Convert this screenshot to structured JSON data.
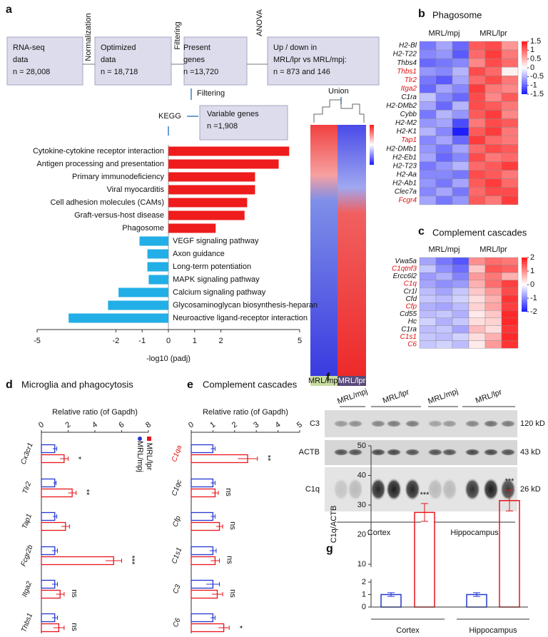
{
  "panel_a": {
    "letter": "a",
    "flow": {
      "boxes": [
        [
          "RNA-seq",
          "data",
          "n = 28,008"
        ],
        [
          "Optimized",
          "data",
          "n = 18,718"
        ],
        [
          "Present",
          "genes",
          "n =13,720"
        ],
        [
          "Up / down in",
          "MRL/lpr vs MRL/mpj:",
          "n = 873 and 146"
        ],
        [
          "Variable genes",
          "n =1,908"
        ]
      ],
      "steps": [
        "Normalization",
        "Filtering",
        "ANOVA",
        "Filtering",
        "Union",
        "KEGG"
      ]
    },
    "inset_groups": [
      "MRL/mpj",
      "MRL/lpr"
    ],
    "chart": {
      "type": "hbar",
      "categories": [
        "Cytokine-cytokine receptor interaction",
        "Antigen processing and presentation",
        "Primary immunodeficiency",
        "Viral myocarditis",
        "Cell adhesion molecules (CAMs)",
        "Graft-versus-host disease",
        "Phagosome",
        "VEGF signaling pathway",
        "Axon guidance",
        "Long-term potentiation",
        "MAPK signaling pathway",
        "Calcium signaling pathway",
        "Glycosaminoglycan biosynthesis-heparan",
        "Neuroactive ligand-receptor interaction"
      ],
      "values": [
        4.6,
        4.2,
        3.3,
        3.3,
        3.0,
        2.9,
        1.8,
        -1.1,
        -0.8,
        -0.8,
        -0.75,
        -1.9,
        -2.3,
        -3.8
      ],
      "positive_color": "#ee1c1c",
      "negative_color": "#22aee6",
      "xlim": [
        -5,
        5
      ],
      "xticks": [
        -5,
        -2,
        -1,
        0,
        1,
        2,
        5
      ],
      "xlabel": "-log10 (padj)"
    }
  },
  "panel_b": {
    "letter": "b",
    "title": "Phagosome",
    "groups": [
      "MRL/mpj",
      "MRL/lpr"
    ],
    "rows": [
      "H2-Bl",
      "H2-T22",
      "Thbs4",
      "Thbs1",
      "Tlr2",
      "Itga2",
      "C1ra",
      "H2-DMb2",
      "Cybb",
      "H2-M2",
      "H2-K1",
      "Tap1",
      "H2-DMb1",
      "H2-Eb1",
      "H2-T23",
      "H2-Aa",
      "H2-Ab1",
      "Clec7a",
      "Fcgr4"
    ],
    "row_colors": [
      "#111",
      "#111",
      "#111",
      "#e01010",
      "#e01010",
      "#e01010",
      "#111",
      "#111",
      "#111",
      "#111",
      "#111",
      "#e01010",
      "#111",
      "#111",
      "#111",
      "#111",
      "#111",
      "#111",
      "#e01010"
    ],
    "values": [
      [
        -0.9,
        -0.6,
        -1.0,
        1.1,
        1.2,
        0.7
      ],
      [
        -0.8,
        -0.7,
        -1.1,
        1.0,
        1.3,
        0.9
      ],
      [
        -1.0,
        -0.9,
        -0.8,
        0.8,
        1.2,
        1.0
      ],
      [
        -0.7,
        -0.8,
        -0.5,
        1.2,
        1.0,
        0.1
      ],
      [
        -0.9,
        -1.1,
        -0.6,
        1.0,
        1.2,
        0.9
      ],
      [
        -1.0,
        -0.6,
        -0.8,
        1.3,
        0.9,
        0.8
      ],
      [
        -0.4,
        -0.8,
        -1.0,
        1.2,
        0.8,
        1.1
      ],
      [
        -0.6,
        -1.0,
        -0.5,
        1.2,
        1.1,
        0.9
      ],
      [
        -0.9,
        -0.5,
        -0.7,
        1.1,
        1.3,
        0.8
      ],
      [
        -0.7,
        -0.6,
        -1.2,
        0.9,
        1.2,
        1.1
      ],
      [
        -0.5,
        -0.8,
        -1.5,
        1.1,
        1.3,
        0.9
      ],
      [
        -0.8,
        -0.6,
        -1.0,
        1.3,
        1.0,
        0.9
      ],
      [
        -0.7,
        -0.9,
        -0.6,
        1.0,
        1.2,
        1.1
      ],
      [
        -0.6,
        -1.0,
        -0.8,
        1.2,
        0.9,
        1.0
      ],
      [
        -0.9,
        -0.7,
        -0.5,
        1.0,
        1.1,
        1.3
      ],
      [
        -0.8,
        -0.8,
        -0.9,
        1.2,
        1.1,
        0.9
      ],
      [
        -0.7,
        -0.9,
        -0.6,
        1.1,
        1.3,
        1.0
      ],
      [
        -0.8,
        -0.6,
        -0.9,
        1.0,
        1.2,
        1.2
      ],
      [
        -0.6,
        -0.9,
        -0.7,
        1.1,
        0.9,
        1.3
      ]
    ],
    "clim": [
      -1.5,
      1.5
    ],
    "scale_ticks": [
      1.5,
      1,
      0.5,
      0,
      -0.5,
      -1,
      -1.5
    ]
  },
  "panel_c": {
    "letter": "c",
    "title": "Complement cascades",
    "groups": [
      "MRL/mpj",
      "MRL/lpr"
    ],
    "rows": [
      "Vwa5a",
      "C1qtnf3",
      "Ercc6l2",
      "C1q",
      "Cr1l",
      "Cfd",
      "Cfp",
      "Cd55",
      "Hc",
      "C1ra",
      "C1s1",
      "C6"
    ],
    "row_colors": [
      "#111",
      "#e01010",
      "#111",
      "#e01010",
      "#111",
      "#111",
      "#e01010",
      "#111",
      "#111",
      "#111",
      "#e01010",
      "#e01010"
    ],
    "values": [
      [
        -0.8,
        -1.2,
        -1.5,
        1.0,
        1.3,
        1.2
      ],
      [
        -0.5,
        -1.0,
        -1.3,
        0.5,
        1.5,
        1.4
      ],
      [
        -0.9,
        -0.7,
        -1.1,
        0.9,
        1.2,
        0.7
      ],
      [
        -0.8,
        -1.0,
        -0.9,
        0.7,
        1.3,
        1.7
      ],
      [
        -0.6,
        -0.8,
        -0.5,
        0.5,
        0.9,
        1.6
      ],
      [
        -0.5,
        -0.6,
        -0.4,
        0.3,
        0.7,
        1.8
      ],
      [
        -0.7,
        -0.8,
        -0.6,
        0.4,
        0.8,
        1.7
      ],
      [
        -0.6,
        -0.5,
        -0.7,
        0.2,
        0.5,
        1.9
      ],
      [
        -0.4,
        -0.7,
        -0.5,
        0.3,
        0.4,
        1.9
      ],
      [
        -0.6,
        -0.5,
        -0.8,
        0.6,
        0.3,
        1.8
      ],
      [
        -0.5,
        -0.6,
        -0.4,
        0.3,
        0.7,
        1.9
      ],
      [
        -0.5,
        -0.4,
        -0.6,
        0.2,
        0.9,
        1.8
      ]
    ],
    "clim": [
      -2,
      2
    ],
    "scale_ticks": [
      2,
      1,
      0,
      -1,
      -2
    ]
  },
  "panel_d": {
    "letter": "d",
    "title": "Microglia and phagocytosis",
    "chart": {
      "type": "grouped-hbar",
      "xlabel": "Relative ratio (of Gapdh)",
      "categories": [
        "Cx3cr1",
        "Tlr2",
        "Tap1",
        "Fcgr2b",
        "Itga2",
        "Thbs1"
      ],
      "category_colors": [
        "#111",
        "#111",
        "#111",
        "#111",
        "#111",
        "#111"
      ],
      "series": [
        {
          "name": "MRL/mpj",
          "color": "#2238d0",
          "values": [
            1.0,
            1.0,
            1.0,
            1.0,
            1.0,
            1.0
          ],
          "errors": [
            0.15,
            0.1,
            0.15,
            0.2,
            0.2,
            0.2
          ]
        },
        {
          "name": "MRL/lpr",
          "color": "#e8141b",
          "values": [
            1.7,
            2.3,
            1.8,
            5.4,
            1.4,
            1.3
          ],
          "errors": [
            0.3,
            0.3,
            0.3,
            0.6,
            0.3,
            0.4
          ]
        }
      ],
      "significance": [
        "*",
        "**",
        null,
        "***",
        "ns",
        "ns"
      ],
      "xlim": [
        0,
        8
      ],
      "xticks": [
        0,
        2,
        4,
        6,
        8
      ]
    }
  },
  "panel_e": {
    "letter": "e",
    "title": "Complement cascades",
    "chart": {
      "type": "grouped-hbar",
      "xlabel": "Relative ratio (of Gapdh)",
      "categories": [
        "C1qa",
        "C1qc",
        "Cfp",
        "C1s1",
        "C3",
        "C6"
      ],
      "category_colors": [
        "#e01010",
        "#111",
        "#111",
        "#111",
        "#111",
        "#111"
      ],
      "series": [
        {
          "name": "MRL/mpj",
          "color": "#2238d0",
          "values": [
            1.0,
            1.0,
            1.0,
            1.0,
            1.0,
            1.0
          ],
          "errors": [
            0.1,
            0.1,
            0.1,
            0.15,
            0.3,
            0.1
          ]
        },
        {
          "name": "MRL/lpr",
          "color": "#e8141b",
          "values": [
            2.6,
            1.1,
            1.3,
            1.1,
            1.2,
            1.5
          ],
          "errors": [
            0.45,
            0.15,
            0.15,
            0.2,
            0.25,
            0.25
          ]
        }
      ],
      "significance": [
        "**",
        "ns",
        "ns",
        "ns",
        "ns",
        "*"
      ],
      "xlim": [
        0,
        5
      ],
      "xticks": [
        0,
        1,
        2,
        3,
        4,
        5
      ]
    }
  },
  "panel_f": {
    "letter": "f",
    "group_labels": [
      "MRL/mpj",
      "MRL/lpr",
      "MRL/mpj",
      "MRL/lpr"
    ],
    "bands": [
      "C3",
      "ACTB",
      "C1q"
    ],
    "sizes": [
      "120 kD",
      "43 kD",
      "26 kD"
    ],
    "regions": [
      "Cortex",
      "Hippocampus"
    ]
  },
  "panel_g": {
    "letter": "g",
    "chart": {
      "type": "broken-bar",
      "ylabel": "C1q/ACTB",
      "categories": [
        "Cortex",
        "Hippocampus"
      ],
      "series": [
        {
          "name": "MRL/mpj",
          "color": "#2238d0",
          "values": [
            1.0,
            1.0
          ],
          "errors": [
            0.15,
            0.15
          ]
        },
        {
          "name": "MRL/lpr",
          "color": "#e8141b",
          "values": [
            27.5,
            31.5
          ],
          "errors": [
            3.0,
            3.5
          ]
        }
      ],
      "significance": [
        "***",
        "***"
      ],
      "ylim": [
        0,
        50
      ],
      "axis_break": [
        2,
        10
      ],
      "yticks": [
        0,
        1,
        2,
        10,
        20,
        30,
        40,
        50
      ]
    }
  }
}
